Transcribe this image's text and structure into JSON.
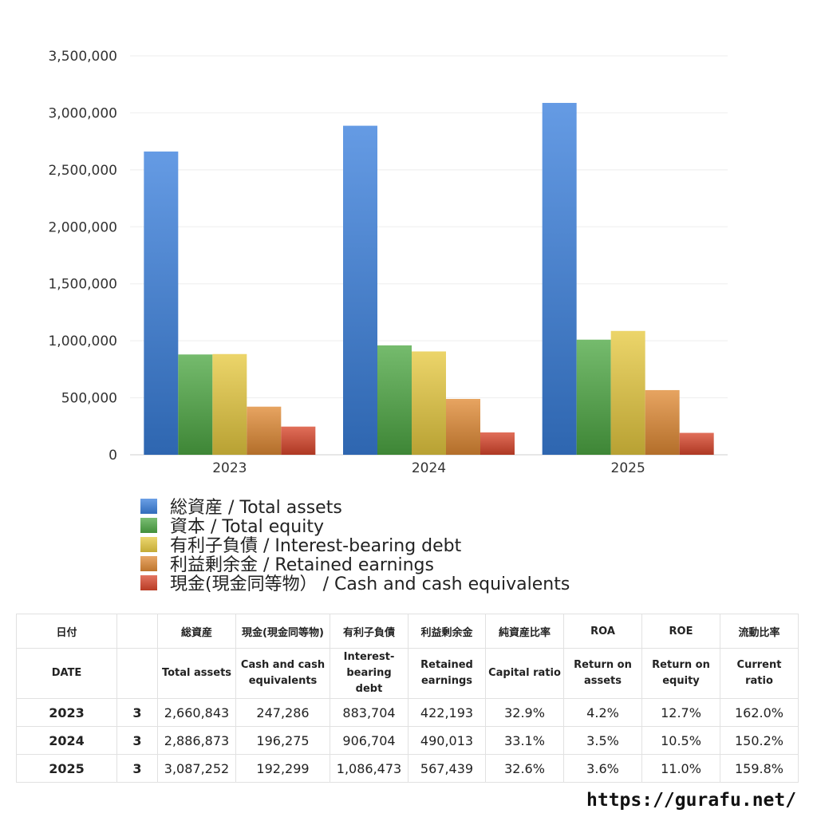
{
  "chart_data": {
    "type": "bar",
    "categories": [
      "2023",
      "2024",
      "2025"
    ],
    "ylim": [
      0,
      3500000
    ],
    "yticks": [
      "0",
      "500,000",
      "1,000,000",
      "1,500,000",
      "2,000,000",
      "2,500,000",
      "3,000,000",
      "3,500,000"
    ],
    "grid": true,
    "legend_position": "bottom",
    "series": [
      {
        "name": "総資産 / Total assets",
        "values": [
          2660843,
          2886873,
          3087252
        ],
        "color": "#3a7fdc"
      },
      {
        "name": "資本 / Total equity",
        "values": [
          880000,
          960000,
          1010000
        ],
        "color": "#4ea844"
      },
      {
        "name": "有利子負債 / Interest-bearing debt",
        "values": [
          883704,
          906704,
          1086473
        ],
        "color": "#e6c940"
      },
      {
        "name": "利益剰余金 / Retained earnings",
        "values": [
          422193,
          490013,
          567439
        ],
        "color": "#e08a35"
      },
      {
        "name": "現金(現金同等物）  /  Cash and cash equivalents",
        "values": [
          247286,
          196275,
          192299
        ],
        "color": "#d9462c"
      }
    ]
  },
  "table": {
    "header_jp": [
      "日付",
      "",
      "総資産",
      "現金(現金同等物)",
      "有利子負債",
      "利益剰余金",
      "純資産比率",
      "ROA",
      "ROE",
      "流動比率"
    ],
    "header_en": [
      "DATE",
      "",
      "Total assets",
      "Cash and cash equivalents",
      "Interest-bearing debt",
      "Retained earnings",
      "Capital ratio",
      "Return on assets",
      "Return on equity",
      "Current ratio"
    ],
    "rows": [
      [
        "2023",
        "3",
        "2,660,843",
        "247,286",
        "883,704",
        "422,193",
        "32.9%",
        "4.2%",
        "12.7%",
        "162.0%"
      ],
      [
        "2024",
        "3",
        "2,886,873",
        "196,275",
        "906,704",
        "490,013",
        "33.1%",
        "3.5%",
        "10.5%",
        "150.2%"
      ],
      [
        "2025",
        "3",
        "3,087,252",
        "192,299",
        "1,086,473",
        "567,439",
        "32.6%",
        "3.6%",
        "11.0%",
        "159.8%"
      ]
    ]
  },
  "footer": {
    "url": "https://gurafu.net/"
  }
}
